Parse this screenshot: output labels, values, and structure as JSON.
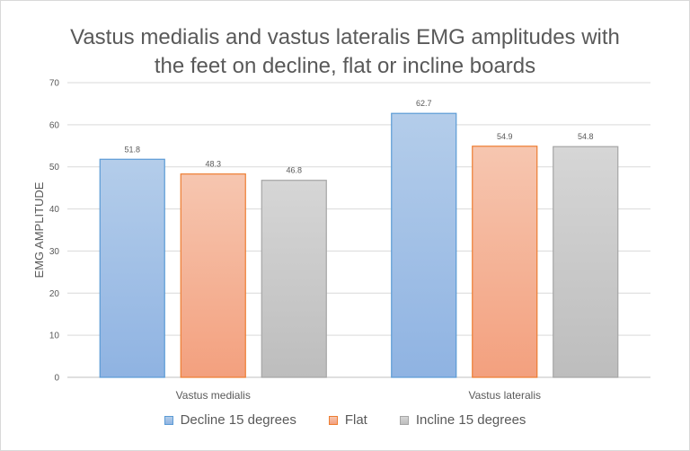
{
  "chart_data": {
    "type": "bar",
    "title_lines": [
      "Vastus medialis and vastus lateralis EMG amplitudes with",
      "the feet on decline, flat or incline boards"
    ],
    "xlabel": "",
    "ylabel": "EMG AMPLITUDE",
    "ylim": [
      0,
      70
    ],
    "yticks": [
      "0",
      "10",
      "20",
      "30",
      "40",
      "50",
      "60",
      "70"
    ],
    "categories": [
      "Vastus medialis",
      "Vastus lateralis"
    ],
    "series": [
      {
        "name": "Decline 15 degrees",
        "values": [
          51.8,
          62.7
        ],
        "labels": [
          "51.8",
          "62.7"
        ],
        "fill_top": "#b4cdea",
        "fill_bottom": "#8fb3e2",
        "stroke": "#5b9bd5"
      },
      {
        "name": "Flat",
        "values": [
          48.3,
          54.9
        ],
        "labels": [
          "48.3",
          "54.9"
        ],
        "fill_top": "#f6c6b0",
        "fill_bottom": "#f3a07e",
        "stroke": "#ed7d31"
      },
      {
        "name": "Incline 15 degrees",
        "values": [
          46.8,
          54.8
        ],
        "labels": [
          "46.8",
          "54.8"
        ],
        "fill_top": "#d6d6d6",
        "fill_bottom": "#bdbdbd",
        "stroke": "#a5a5a5"
      }
    ],
    "grid": true,
    "legend_position": "bottom"
  }
}
